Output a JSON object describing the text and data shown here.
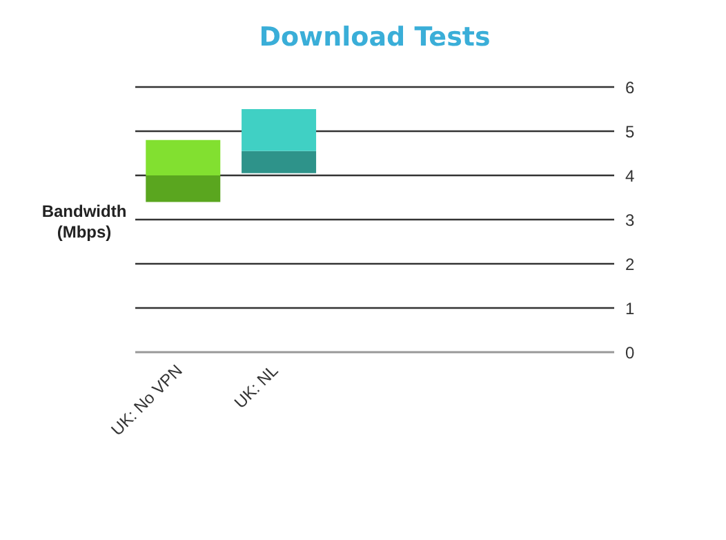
{
  "chart_data": {
    "type": "bar",
    "title": "Download Tests",
    "ylabel": "Bandwidth (Mbps)",
    "categories": [
      "UK: No VPN",
      "UK: NL",
      null,
      null,
      null
    ],
    "series": [
      {
        "colors": [
          "#5aa61f",
          "#2e938a",
          null,
          null,
          null
        ],
        "base": [
          3.4,
          4.05,
          null,
          null,
          null
        ],
        "values": [
          0.6,
          0.5,
          null,
          null,
          null
        ]
      },
      {
        "colors": [
          "#82e030",
          "#40d0c4",
          null,
          null,
          null
        ],
        "base": [
          4.0,
          4.55,
          null,
          null,
          null
        ],
        "values": [
          0.8,
          0.95,
          null,
          null,
          null
        ]
      }
    ],
    "ylim": [
      0,
      6
    ],
    "yticks": [
      0,
      1,
      2,
      3,
      4,
      5,
      6
    ],
    "grid": "y",
    "legend": false
  }
}
